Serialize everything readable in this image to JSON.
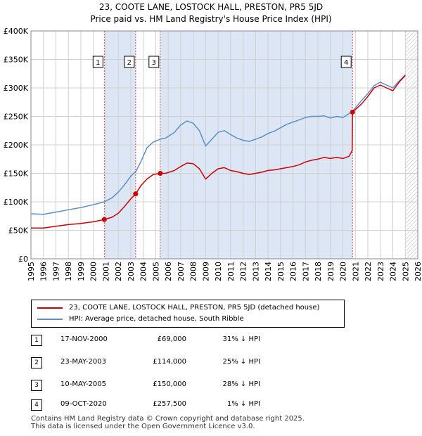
{
  "title_line1": "23, COOTE LANE, LOSTOCK HALL, PRESTON, PR5 5JD",
  "title_line2": "Price paid vs. HM Land Registry's House Price Index (HPI)",
  "colors": {
    "property": "#cc0000",
    "hpi": "#5b8fc9",
    "shade": "#dce6f5",
    "grid": "#d0d0d0"
  },
  "chart_data": {
    "type": "line",
    "xlim": [
      1995,
      2026
    ],
    "ylim": [
      0,
      400000
    ],
    "x_ticks": [
      1995,
      1996,
      1997,
      1998,
      1999,
      2000,
      2001,
      2002,
      2003,
      2004,
      2005,
      2006,
      2007,
      2008,
      2009,
      2010,
      2011,
      2012,
      2013,
      2014,
      2015,
      2016,
      2017,
      2018,
      2019,
      2020,
      2021,
      2022,
      2023,
      2024,
      2025,
      2026
    ],
    "y_ticks": [
      {
        "value": 0,
        "label": "£0"
      },
      {
        "value": 50000,
        "label": "£50K"
      },
      {
        "value": 100000,
        "label": "£100K"
      },
      {
        "value": 150000,
        "label": "£150K"
      },
      {
        "value": 200000,
        "label": "£200K"
      },
      {
        "value": 250000,
        "label": "£250K"
      },
      {
        "value": 300000,
        "label": "£300K"
      },
      {
        "value": 350000,
        "label": "£350K"
      },
      {
        "value": 400000,
        "label": "£400K"
      }
    ],
    "shaded_spans": [
      [
        2000.88,
        2003.39
      ],
      [
        2005.36,
        2020.77
      ]
    ],
    "forecast_start": 2025.0,
    "sales": [
      {
        "label": "1",
        "x": 2000.88,
        "y": 69000
      },
      {
        "label": "2",
        "x": 2003.39,
        "y": 114000
      },
      {
        "label": "3",
        "x": 2005.36,
        "y": 150000
      },
      {
        "label": "4",
        "x": 2020.77,
        "y": 257500
      }
    ],
    "series": [
      {
        "name": "23, COOTE LANE, LOSTOCK HALL, PRESTON, PR5 5JD (detached house)",
        "color": "#cc0000",
        "x": [
          1995.0,
          1996.0,
          1997.0,
          1998.0,
          1999.0,
          2000.0,
          2000.88,
          2001.5,
          2002.0,
          2002.5,
          2003.0,
          2003.39,
          2003.8,
          2004.3,
          2004.8,
          2005.36,
          2005.8,
          2006.5,
          2007.0,
          2007.5,
          2008.0,
          2008.5,
          2009.0,
          2009.5,
          2010.0,
          2010.5,
          2011.0,
          2011.5,
          2012.0,
          2012.5,
          2013.0,
          2013.5,
          2014.0,
          2014.5,
          2015.0,
          2015.5,
          2016.0,
          2016.5,
          2017.0,
          2017.5,
          2018.0,
          2018.5,
          2019.0,
          2019.5,
          2020.0,
          2020.5,
          2020.74,
          2020.77,
          2021.0,
          2021.5,
          2022.0,
          2022.5,
          2023.0,
          2023.5,
          2024.0,
          2024.5,
          2025.0
        ],
        "y": [
          54000,
          54000,
          57000,
          60000,
          62000,
          65000,
          69000,
          73000,
          80000,
          92000,
          105000,
          114000,
          128000,
          140000,
          148000,
          150000,
          150000,
          155000,
          162000,
          168000,
          167000,
          158000,
          140000,
          150000,
          158000,
          160000,
          155000,
          153000,
          150000,
          148000,
          150000,
          152000,
          155000,
          156000,
          158000,
          160000,
          162000,
          165000,
          170000,
          173000,
          175000,
          178000,
          176000,
          178000,
          176000,
          180000,
          190000,
          257500,
          262000,
          272000,
          285000,
          300000,
          305000,
          300000,
          295000,
          310000,
          322000
        ]
      },
      {
        "name": "HPI: Average price, detached house, South Ribble",
        "color": "#5b8fc9",
        "x": [
          1995.0,
          1996.0,
          1997.0,
          1998.0,
          1999.0,
          2000.0,
          2000.88,
          2001.5,
          2002.0,
          2002.5,
          2003.0,
          2003.39,
          2003.8,
          2004.3,
          2004.8,
          2005.36,
          2005.8,
          2006.5,
          2007.0,
          2007.5,
          2008.0,
          2008.5,
          2009.0,
          2009.5,
          2010.0,
          2010.5,
          2011.0,
          2011.5,
          2012.0,
          2012.5,
          2013.0,
          2013.5,
          2014.0,
          2014.5,
          2015.0,
          2015.5,
          2016.0,
          2016.5,
          2017.0,
          2017.5,
          2018.0,
          2018.5,
          2019.0,
          2019.5,
          2020.0,
          2020.5,
          2020.77,
          2021.0,
          2021.5,
          2022.0,
          2022.5,
          2023.0,
          2023.5,
          2024.0,
          2024.5,
          2025.0
        ],
        "y": [
          79000,
          78000,
          82000,
          86000,
          90000,
          95000,
          100000,
          107000,
          117000,
          130000,
          145000,
          153000,
          170000,
          195000,
          205000,
          210000,
          212000,
          222000,
          235000,
          242000,
          238000,
          225000,
          198000,
          210000,
          222000,
          225000,
          218000,
          212000,
          208000,
          206000,
          210000,
          214000,
          220000,
          224000,
          230000,
          236000,
          240000,
          244000,
          248000,
          250000,
          250000,
          251000,
          247000,
          250000,
          248000,
          255000,
          259000,
          265000,
          278000,
          290000,
          304000,
          310000,
          305000,
          300000,
          312000,
          323000
        ]
      }
    ]
  },
  "legend": {
    "property_label": "23, COOTE LANE, LOSTOCK HALL, PRESTON, PR5 5JD (detached house)",
    "hpi_label": "HPI: Average price, detached house, South Ribble"
  },
  "transactions": [
    {
      "num": "1",
      "date": "17-NOV-2000",
      "price": "£69,000",
      "hpi": "31% ↓ HPI"
    },
    {
      "num": "2",
      "date": "23-MAY-2003",
      "price": "£114,000",
      "hpi": "25% ↓ HPI"
    },
    {
      "num": "3",
      "date": "10-MAY-2005",
      "price": "£150,000",
      "hpi": "28% ↓ HPI"
    },
    {
      "num": "4",
      "date": "09-OCT-2020",
      "price": "£257,500",
      "hpi": "1% ↓ HPI"
    }
  ],
  "footer_line1": "Contains HM Land Registry data © Crown copyright and database right 2025.",
  "footer_line2": "This data is licensed under the Open Government Licence v3.0."
}
